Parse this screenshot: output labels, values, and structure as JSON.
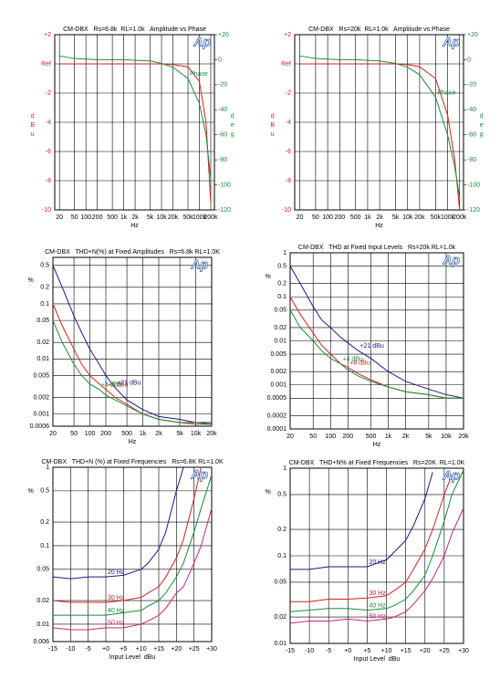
{
  "chart_data": [
    {
      "type": "line",
      "title": "CM-DBX   Rs=6.8k  RL=1.0k   Amplitude vs Phase",
      "logo": "Ap",
      "xlabel": "Hz",
      "ylabel": "dBu",
      "y2label": "deg",
      "xlog": true,
      "grid": true,
      "x": [
        20,
        50,
        100,
        200,
        500,
        1000,
        2000,
        5000,
        10000,
        20000,
        50000,
        100000,
        150000,
        200000
      ],
      "xlim": [
        15,
        250000
      ],
      "xticks": [
        20,
        50,
        100,
        200,
        500,
        {
          "value": 1000,
          "label": "1k"
        },
        {
          "value": 2000,
          "label": "2k"
        },
        {
          "value": 5000,
          "label": "5k"
        },
        {
          "value": 10000,
          "label": "10k"
        },
        {
          "value": 20000,
          "label": "20k"
        },
        {
          "value": 50000,
          "label": "50k"
        },
        {
          "value": 100000,
          "label": "100k"
        },
        {
          "value": 200000,
          "label": "200k"
        }
      ],
      "ylim": [
        -10,
        2
      ],
      "yticks": [
        {
          "value": 2,
          "label": "+2"
        },
        {
          "value": 0,
          "label": "Ref"
        },
        -2,
        -4,
        -6,
        -8,
        -10
      ],
      "y2lim": [
        -120,
        20
      ],
      "y2ticks": [
        {
          "value": 20,
          "label": "+20"
        },
        0,
        -20,
        -40,
        -60,
        -80,
        -100,
        -120
      ],
      "series": [
        {
          "color": "#d42020",
          "values": [
            0,
            0,
            0,
            0,
            0,
            0,
            0,
            0,
            0,
            -0.05,
            -0.2,
            -1.2,
            -4,
            -9.5
          ]
        },
        {
          "name": "Phase",
          "color": "#1a8a3a",
          "axis": "y2",
          "values": [
            3,
            1,
            0.5,
            0,
            0,
            0,
            -0.5,
            -1,
            -3,
            -6,
            -15,
            -35,
            -60,
            -95
          ]
        }
      ]
    },
    {
      "type": "line",
      "title": "CM-DBX   Rs=20k  RL=1.0k   Amplitude vs Phase",
      "logo": "Ap",
      "xlabel": "Hz",
      "ylabel": "dBu",
      "y2label": "deg",
      "xlog": true,
      "grid": true,
      "x": [
        20,
        50,
        100,
        200,
        500,
        1000,
        2000,
        5000,
        10000,
        20000,
        50000,
        100000,
        150000,
        200000
      ],
      "xlim": [
        15,
        250000
      ],
      "xticks": [
        20,
        50,
        100,
        200,
        500,
        {
          "value": 1000,
          "label": "1k"
        },
        {
          "value": 2000,
          "label": "2k"
        },
        {
          "value": 5000,
          "label": "5k"
        },
        {
          "value": 10000,
          "label": "10k"
        },
        {
          "value": 20000,
          "label": "20k"
        },
        {
          "value": 50000,
          "label": "50k"
        },
        {
          "value": 100000,
          "label": "100k"
        },
        {
          "value": 200000,
          "label": "200k"
        }
      ],
      "ylim": [
        -10,
        2
      ],
      "yticks": [
        {
          "value": 2,
          "label": "+2"
        },
        {
          "value": 0,
          "label": "Ref"
        },
        -2,
        -4,
        -6,
        -8,
        -10
      ],
      "y2lim": [
        -120,
        20
      ],
      "y2ticks": [
        {
          "value": 20,
          "label": "+20"
        },
        0,
        -20,
        -40,
        -60,
        -80,
        -100,
        -120
      ],
      "series": [
        {
          "color": "#d42020",
          "values": [
            0,
            0,
            0,
            0,
            0,
            0,
            0,
            0,
            -0.05,
            -0.2,
            -1,
            -3.5,
            -6.5,
            -10
          ]
        },
        {
          "name": "Phase",
          "color": "#1a8a3a",
          "axis": "y2",
          "values": [
            3,
            1,
            0.5,
            0,
            0,
            -0.5,
            -1,
            -3,
            -6,
            -12,
            -30,
            -60,
            -85,
            -110
          ]
        }
      ]
    },
    {
      "type": "line",
      "title": "CM-DBX   THD+N(%) at Fixed Amplitudes   Rs=6.8k RL=1.0K",
      "logo": "Ap",
      "xlabel": "Hz",
      "ylabel": "%",
      "xlog": true,
      "ylog": true,
      "grid": true,
      "x": [
        20,
        30,
        50,
        70,
        100,
        150,
        200,
        300,
        500,
        1000,
        2000,
        5000,
        10000,
        20000
      ],
      "xlim": [
        20,
        20000
      ],
      "xticks": [
        20,
        50,
        100,
        200,
        500,
        {
          "value": 1000,
          "label": "1k"
        },
        {
          "value": 2000,
          "label": "2k"
        },
        {
          "value": 5000,
          "label": "5k"
        },
        {
          "value": 10000,
          "label": "10k"
        },
        {
          "value": 20000,
          "label": "20k"
        }
      ],
      "ylim": [
        0.0006,
        0.7
      ],
      "yticks": [
        0.5,
        0.2,
        0.1,
        0.05,
        0.02,
        0.01,
        0.005,
        0.002,
        0.001,
        0.0006
      ],
      "series": [
        {
          "name": "+21 dBu",
          "color": "#1a1a80",
          "values": [
            0.5,
            0.2,
            0.06,
            0.03,
            0.015,
            0.008,
            0.005,
            0.003,
            0.0018,
            0.0012,
            0.0009,
            0.0008,
            0.0007,
            0.0007
          ]
        },
        {
          "name": "+8 dBu",
          "color": "#d42020",
          "values": [
            0.1,
            0.04,
            0.015,
            0.008,
            0.005,
            0.0035,
            0.0028,
            0.002,
            0.0015,
            0.001,
            0.0008,
            0.0007,
            0.0007,
            0.00065
          ]
        },
        {
          "name": "+4 dBu",
          "color": "#1a8a3a",
          "values": [
            0.05,
            0.02,
            0.008,
            0.005,
            0.0035,
            0.0028,
            0.0022,
            0.0018,
            0.0014,
            0.001,
            0.0008,
            0.0007,
            0.00065,
            0.00065
          ]
        }
      ]
    },
    {
      "type": "line",
      "title": "CM-DBX   THD at Fixed Input Levels   Rs=20k RL=1.0k",
      "logo": "Ap",
      "xlabel": "Hz",
      "ylabel": "%",
      "xlog": true,
      "ylog": true,
      "grid": true,
      "x": [
        20,
        30,
        50,
        70,
        100,
        150,
        200,
        300,
        500,
        1000,
        2000,
        5000,
        10000,
        20000
      ],
      "xlim": [
        20,
        20000
      ],
      "xticks": [
        20,
        50,
        100,
        200,
        500,
        {
          "value": 1000,
          "label": "1k"
        },
        {
          "value": 2000,
          "label": "2k"
        },
        {
          "value": 5000,
          "label": "5k"
        },
        {
          "value": 10000,
          "label": "10k"
        },
        {
          "value": 20000,
          "label": "20k"
        }
      ],
      "ylim": [
        0.0001,
        1
      ],
      "yticks": [
        1,
        0.5,
        0.2,
        0.1,
        0.05,
        0.02,
        0.01,
        0.005,
        0.002,
        0.001,
        0.0005,
        0.0002,
        0.0001
      ],
      "series": [
        {
          "name": "+21 dBu",
          "color": "#1a1a80",
          "values": [
            0.5,
            0.2,
            0.06,
            0.03,
            0.02,
            0.012,
            0.009,
            0.006,
            0.004,
            0.002,
            0.0012,
            0.0008,
            0.0006,
            0.0005
          ]
        },
        {
          "name": "+8 dBu",
          "color": "#d42020",
          "values": [
            0.1,
            0.04,
            0.015,
            0.008,
            0.005,
            0.003,
            0.0025,
            0.0018,
            0.0013,
            0.0009,
            0.0007,
            0.0006,
            0.0005,
            0.0005
          ]
        },
        {
          "name": "+4 dBu",
          "color": "#1a8a3a",
          "values": [
            0.05,
            0.02,
            0.01,
            0.006,
            0.004,
            0.003,
            0.0022,
            0.0016,
            0.0012,
            0.0009,
            0.0007,
            0.0006,
            0.0005,
            0.0005
          ]
        }
      ]
    },
    {
      "type": "line",
      "title": "CM-DBX   THD+N (%) at Fixed Frequencies   Rs=6.8K RL=1.0K",
      "logo": "Ap",
      "xlabel": "Input Level  dBu",
      "ylabel": "%",
      "ylog": true,
      "grid": true,
      "x": [
        -15,
        -10,
        -5,
        0,
        5,
        10,
        12,
        15,
        17,
        20,
        22,
        25,
        27,
        30
      ],
      "xlim": [
        -15,
        30
      ],
      "xticks": [
        -15,
        -10,
        -5,
        {
          "value": 0,
          "label": "+0"
        },
        {
          "value": 5,
          "label": "+5"
        },
        {
          "value": 10,
          "label": "+10"
        },
        {
          "value": 15,
          "label": "+15"
        },
        {
          "value": 20,
          "label": "+20"
        },
        {
          "value": 25,
          "label": "+25"
        },
        {
          "value": 30,
          "label": "+30"
        }
      ],
      "ylim": [
        0.006,
        1
      ],
      "yticks": [
        1,
        0.5,
        0.2,
        0.1,
        0.05,
        0.02,
        0.01,
        0.006
      ],
      "series": [
        {
          "name": "20 Hz",
          "color": "#1a1a80",
          "values": [
            0.04,
            0.038,
            0.04,
            0.04,
            0.042,
            0.05,
            0.06,
            0.09,
            0.15,
            0.5,
            1,
            null,
            null,
            null
          ]
        },
        {
          "name": "30 Hz",
          "color": "#d42020",
          "values": [
            0.02,
            0.019,
            0.019,
            0.019,
            0.02,
            0.022,
            0.025,
            0.03,
            0.04,
            0.07,
            0.12,
            0.4,
            1,
            null
          ]
        },
        {
          "name": "40 Hz",
          "color": "#1a8a3a",
          "values": [
            0.013,
            0.013,
            0.013,
            0.013,
            0.014,
            0.015,
            0.017,
            0.02,
            0.025,
            0.04,
            0.06,
            0.15,
            0.3,
            0.8
          ]
        },
        {
          "name": "50 Hz",
          "color": "#d0207a",
          "values": [
            0.009,
            0.0085,
            0.0085,
            0.009,
            0.009,
            0.01,
            0.011,
            0.013,
            0.016,
            0.025,
            0.03,
            0.06,
            0.1,
            0.3
          ]
        }
      ]
    },
    {
      "type": "line",
      "title": "CM-DBX   THD+N% at Fixed Frequencies   Rs=20K  RL=1.0K",
      "logo": "Ap",
      "xlabel": "Input Level  dBu",
      "ylabel": "%",
      "ylog": true,
      "grid": true,
      "x": [
        -15,
        -10,
        -5,
        0,
        5,
        10,
        12,
        15,
        17,
        20,
        22,
        25,
        27,
        30
      ],
      "xlim": [
        -15,
        30
      ],
      "xticks": [
        -15,
        -10,
        -5,
        {
          "value": 0,
          "label": "+0"
        },
        {
          "value": 5,
          "label": "+5"
        },
        {
          "value": 10,
          "label": "+10"
        },
        {
          "value": 15,
          "label": "+15"
        },
        {
          "value": 20,
          "label": "+20"
        },
        {
          "value": 25,
          "label": "+25"
        },
        {
          "value": 30,
          "label": "+30"
        }
      ],
      "ylim": [
        0.01,
        1
      ],
      "yticks": [
        1,
        0.5,
        0.2,
        0.1,
        0.05,
        0.02,
        0.01
      ],
      "series": [
        {
          "name": "20 Hz",
          "color": "#1a1a80",
          "values": [
            0.07,
            0.07,
            0.075,
            0.075,
            0.075,
            0.09,
            0.11,
            0.15,
            0.22,
            0.45,
            0.9,
            null,
            null,
            null
          ]
        },
        {
          "name": "30 Hz",
          "color": "#d42020",
          "values": [
            0.03,
            0.03,
            0.032,
            0.032,
            0.033,
            0.035,
            0.04,
            0.05,
            0.07,
            0.12,
            0.2,
            0.5,
            0.85,
            null
          ]
        },
        {
          "name": "40 Hz",
          "color": "#1a8a3a",
          "values": [
            0.023,
            0.024,
            0.025,
            0.025,
            0.024,
            0.025,
            0.027,
            0.032,
            0.04,
            0.06,
            0.1,
            0.25,
            0.5,
            0.95
          ]
        },
        {
          "name": "50 Hz",
          "color": "#d0207a",
          "values": [
            0.017,
            0.018,
            0.018,
            0.019,
            0.018,
            0.019,
            0.02,
            0.023,
            0.028,
            0.04,
            0.055,
            0.1,
            0.18,
            0.35
          ]
        }
      ]
    }
  ]
}
